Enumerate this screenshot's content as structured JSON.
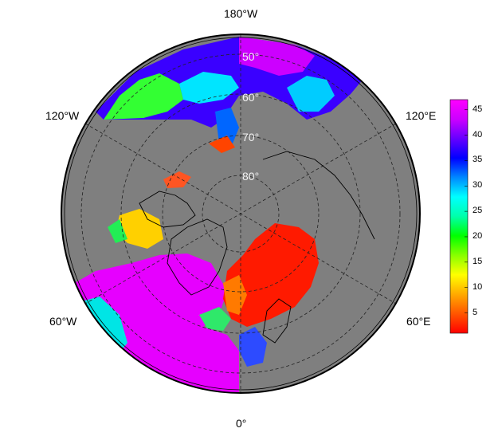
{
  "map": {
    "projection": "north-polar-stereographic",
    "background_color": "#7f7f7f",
    "meridian_labels": {
      "top": "180°W",
      "bottom": "0°",
      "upper_left": "120°W",
      "upper_right": "120°E",
      "lower_left": "60°W",
      "lower_right": "60°E"
    },
    "parallel_labels": [
      "50°",
      "60°",
      "70°",
      "80°"
    ]
  },
  "colorbar": {
    "ticks": [
      "5",
      "10",
      "15",
      "20",
      "25",
      "30",
      "35",
      "40",
      "45"
    ],
    "min": 1,
    "max": 47,
    "colors": [
      "#ff0000",
      "#ff5500",
      "#ffaa00",
      "#ffff00",
      "#88ff00",
      "#00ff00",
      "#00ffaa",
      "#00ffff",
      "#0088ff",
      "#0000ff",
      "#6600ff",
      "#cc00ff",
      "#ff00ff"
    ]
  }
}
